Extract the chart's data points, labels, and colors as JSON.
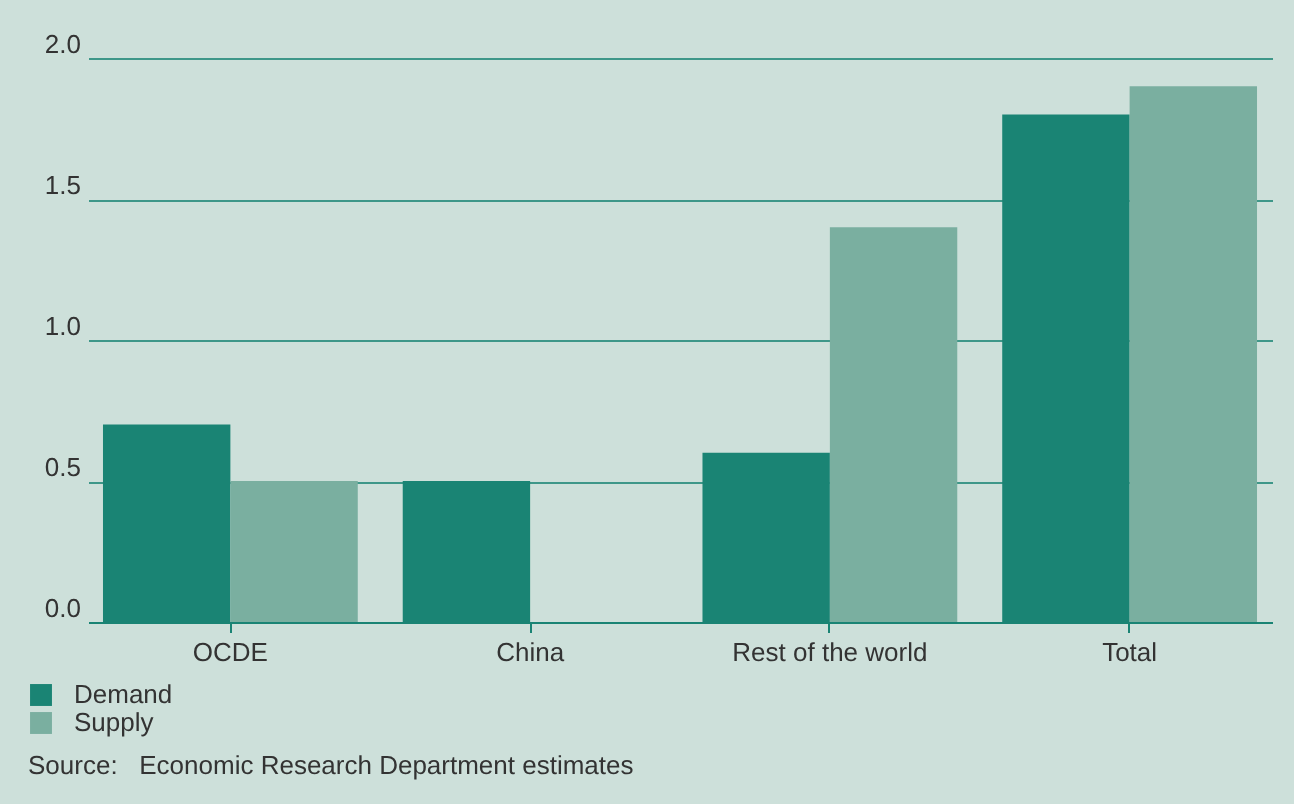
{
  "chart_data": {
    "type": "bar",
    "categories": [
      "OCDE",
      "China",
      "Rest of the world",
      "Total"
    ],
    "series": [
      {
        "name": "Demand",
        "color": "#1a8474",
        "values": [
          0.7,
          0.5,
          0.6,
          1.8
        ]
      },
      {
        "name": "Supply",
        "color": "#7aafa0",
        "values": [
          0.5,
          0.0,
          1.4,
          1.9
        ]
      }
    ],
    "ylim": [
      0,
      2.0
    ],
    "yticks": [
      {
        "value": 0,
        "label": "0.0"
      },
      {
        "value": 0.5,
        "label": "0.5"
      },
      {
        "value": 1,
        "label": "1.0"
      },
      {
        "value": 1.5,
        "label": "1.5"
      },
      {
        "value": 2,
        "label": "2.0"
      }
    ],
    "grid": "y",
    "legend": "bottom left",
    "annotations": [
      "Source:   Economic Research Department estimates"
    ]
  }
}
